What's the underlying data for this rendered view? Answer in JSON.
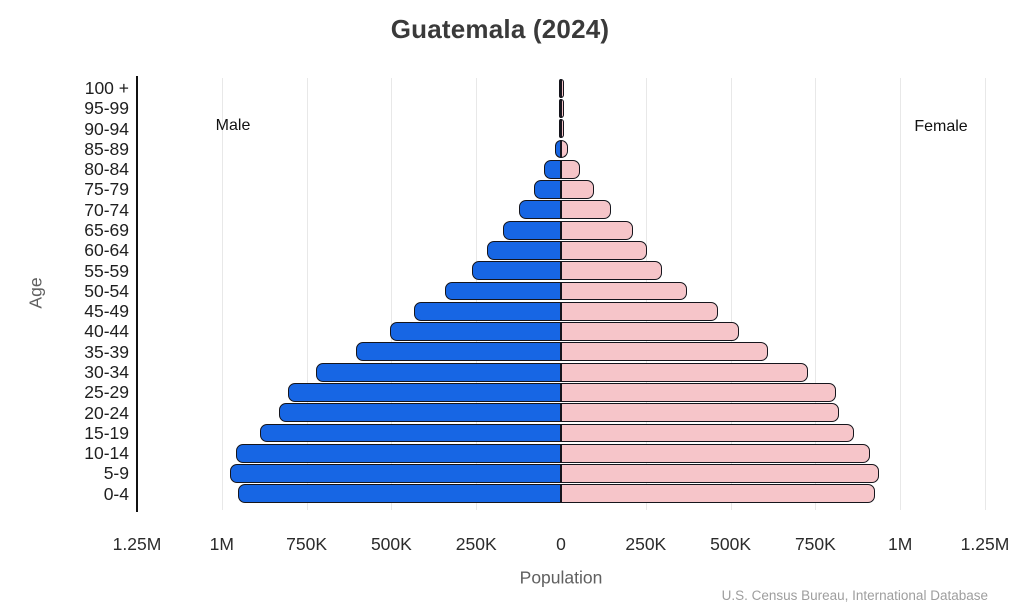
{
  "chart_data": {
    "type": "bar",
    "subtype": "population-pyramid",
    "title": "Guatemala (2024)",
    "xlabel": "Population",
    "ylabel": "Age",
    "source": "U.S. Census Bureau, International Database",
    "grid": true,
    "legend_position": "in-plot-top-corners",
    "categories_top_to_bottom": [
      "100 +",
      "95-99",
      "90-94",
      "85-89",
      "80-84",
      "75-79",
      "70-74",
      "65-69",
      "60-64",
      "55-59",
      "50-54",
      "45-49",
      "40-44",
      "35-39",
      "30-34",
      "25-29",
      "20-24",
      "15-19",
      "10-14",
      "5-9",
      "0-4"
    ],
    "series": [
      {
        "name": "Male",
        "side": "left",
        "color": "#1766E4",
        "values_top_to_bottom": [
          1000,
          2000,
          6000,
          18000,
          49000,
          79000,
          123000,
          170000,
          217000,
          263000,
          342000,
          432000,
          503000,
          604000,
          723000,
          805000,
          832000,
          888000,
          958000,
          976000,
          952000
        ]
      },
      {
        "name": "Female",
        "side": "right",
        "color": "#F6C5C9",
        "values_top_to_bottom": [
          2000,
          4000,
          9000,
          22000,
          56000,
          97000,
          146000,
          211000,
          255000,
          299000,
          372000,
          462000,
          524000,
          610000,
          729000,
          812000,
          820000,
          865000,
          911000,
          937000,
          925000
        ]
      }
    ],
    "x_axis": {
      "min": -1250000,
      "max": 1250000,
      "tick_values": [
        -1250000,
        -1000000,
        -750000,
        -500000,
        -250000,
        0,
        250000,
        500000,
        750000,
        1000000,
        1250000
      ],
      "tick_labels": [
        "1.25M",
        "1M",
        "750K",
        "500K",
        "250K",
        "0",
        "250K",
        "500K",
        "750K",
        "1M",
        "1.25M"
      ]
    },
    "style": {
      "bar_outline_color": "#15151C",
      "gridline_color": "#E8E8E8",
      "axis_line_color": "#111111",
      "title_color": "#3A3A3A",
      "tick_label_color": "#2B2B2B",
      "axis_label_color": "#606060",
      "source_color": "#9E9E9E"
    }
  }
}
